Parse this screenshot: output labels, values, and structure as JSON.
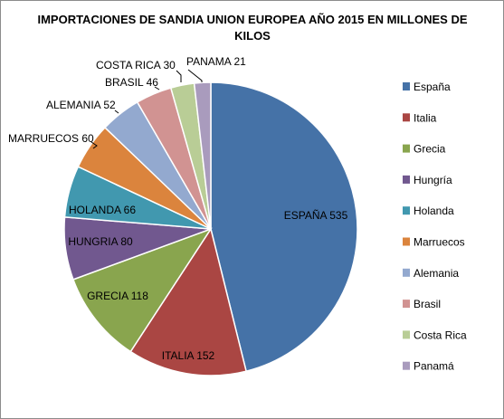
{
  "chart_data": {
    "type": "pie",
    "title_lines": [
      "IMPORTACIONES DE SANDIA UNION EUROPEA AÑO 2015 EN MILLONES DE",
      "KILOS"
    ],
    "categories": [
      "España",
      "Italia",
      "Grecia",
      "Hungría",
      "Holanda",
      "Marruecos",
      "Alemania",
      "Brasil",
      "Costa Rica",
      "Panamá"
    ],
    "values": [
      535,
      152,
      118,
      80,
      66,
      60,
      52,
      46,
      30,
      21
    ],
    "data_labels": [
      "ESPAÑA 535",
      "ITALIA 152",
      "GRECIA 118",
      "HUNGRIA 80",
      "HOLANDA 66",
      "MARRUECOS 60",
      "ALEMANIA 52",
      "BRASIL 46",
      "COSTA RICA 30",
      "PANAMA 21"
    ],
    "colors": [
      "#4572A7",
      "#AA4643",
      "#89A54E",
      "#71588F",
      "#4198AF",
      "#DB843D",
      "#93A9CF",
      "#D19392",
      "#B9CD96",
      "#A99BBD"
    ],
    "start_angle": "12 o'clock",
    "direction": "clockwise",
    "legend_position": "right"
  }
}
